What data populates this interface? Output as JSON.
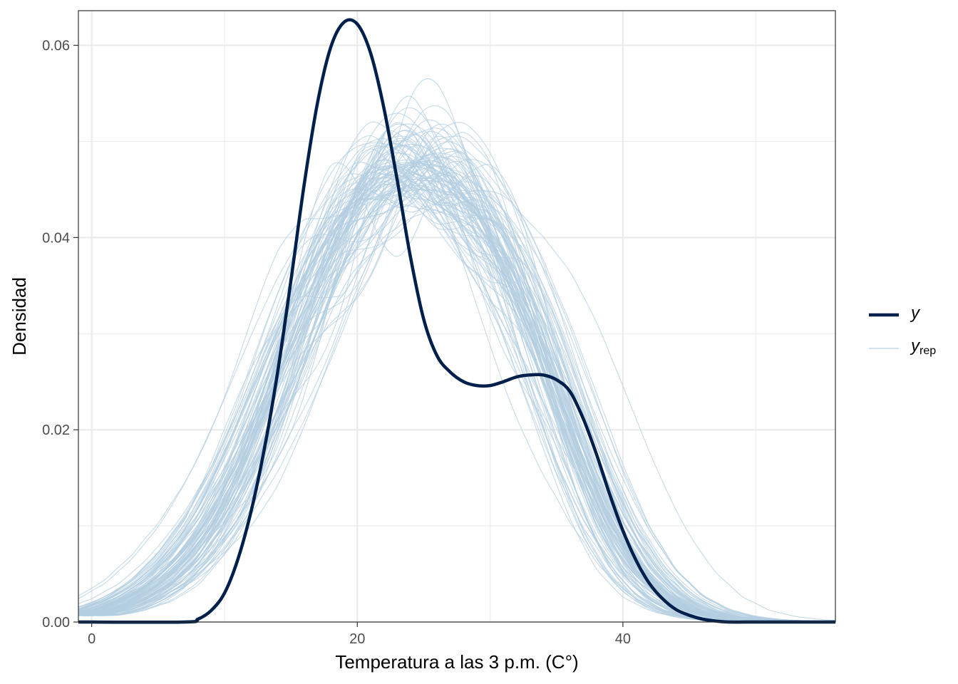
{
  "chart_data": {
    "type": "line",
    "xlabel": "Temperatura a las 3 p.m. (C°)",
    "ylabel": "Densidad",
    "xlim": [
      -1,
      56
    ],
    "ylim": [
      0,
      0.0636
    ],
    "x_ticks": [
      0,
      20,
      40
    ],
    "x_tick_labels": [
      "0",
      "20",
      "40"
    ],
    "y_ticks": [
      0.0,
      0.02,
      0.04,
      0.06
    ],
    "y_tick_labels": [
      "0.00",
      "0.02",
      "0.04",
      "0.06"
    ],
    "grid": true,
    "legend_position": "right",
    "legend": {
      "observed": "y",
      "replicated_main": "y",
      "replicated_sub": "rep"
    },
    "colors": {
      "observed": "#011f4b",
      "replicated": "#b3cde0",
      "grid": "#ebebeb",
      "panel_border": "#333333"
    },
    "series": [
      {
        "name": "y",
        "x": [
          7,
          8,
          9,
          10,
          11,
          12,
          13,
          14,
          15,
          16,
          17,
          18,
          19,
          20,
          21,
          22,
          23,
          24,
          25,
          26,
          27,
          28,
          29,
          30,
          31,
          32,
          33,
          34,
          35,
          36,
          37,
          38,
          39,
          40,
          41,
          42,
          43,
          44,
          45,
          46,
          47,
          48,
          50,
          52,
          56
        ],
        "values": [
          0.0,
          0.0003,
          0.0012,
          0.003,
          0.0065,
          0.0115,
          0.018,
          0.026,
          0.0355,
          0.0455,
          0.054,
          0.0598,
          0.0624,
          0.0622,
          0.0592,
          0.0535,
          0.046,
          0.038,
          0.0315,
          0.0277,
          0.026,
          0.025,
          0.0246,
          0.0246,
          0.025,
          0.0255,
          0.0257,
          0.0257,
          0.0252,
          0.024,
          0.0212,
          0.0175,
          0.0133,
          0.0095,
          0.0064,
          0.004,
          0.0024,
          0.0013,
          0.0007,
          0.0003,
          0.0001,
          0.0,
          0.0,
          0.0,
          0.0
        ]
      }
    ],
    "replicated": {
      "name": "y_rep",
      "count": 100,
      "x": [
        -1,
        1,
        3,
        5,
        7,
        9,
        11,
        13,
        15,
        17,
        19,
        21,
        23,
        25,
        27,
        29,
        31,
        33,
        35,
        37,
        39,
        41,
        43,
        45,
        47,
        49,
        51,
        53,
        56
      ],
      "mean_values": [
        0.0007,
        0.0013,
        0.0024,
        0.0041,
        0.0068,
        0.0106,
        0.0158,
        0.0222,
        0.0293,
        0.0362,
        0.0418,
        0.0454,
        0.047,
        0.0471,
        0.0458,
        0.0428,
        0.0378,
        0.0312,
        0.0237,
        0.0163,
        0.01,
        0.0055,
        0.0027,
        0.0012,
        0.0005,
        0.0002,
        0.0001,
        0.0,
        0.0
      ]
    }
  }
}
